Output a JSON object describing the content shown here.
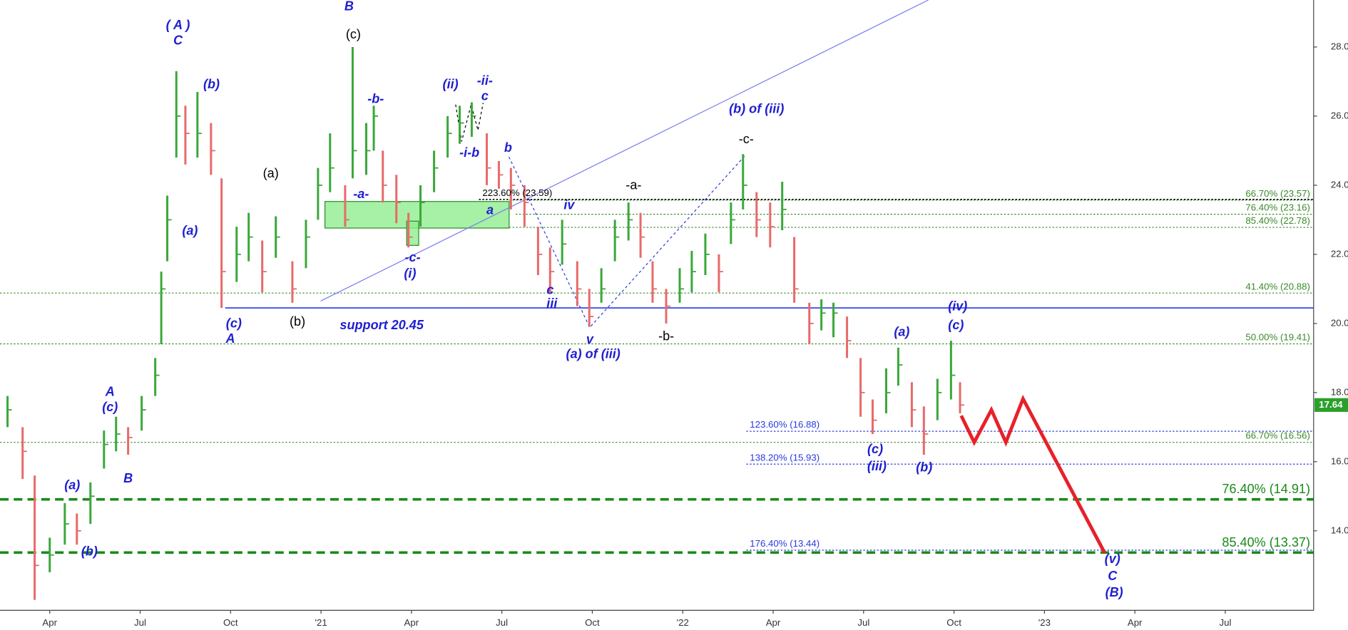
{
  "chart_data": {
    "type": "ohlc",
    "xlim": [
      1.35,
      44.93
    ],
    "ylim": [
      11.7,
      29.36
    ],
    "xticks": [
      {
        "value": 3,
        "label": "Apr"
      },
      {
        "value": 6,
        "label": "Jul"
      },
      {
        "value": 9,
        "label": "Oct"
      },
      {
        "value": 12,
        "label": "'21"
      },
      {
        "value": 15,
        "label": "Apr"
      },
      {
        "value": 18,
        "label": "Jul"
      },
      {
        "value": 21,
        "label": "Oct"
      },
      {
        "value": 24,
        "label": "'22"
      },
      {
        "value": 27,
        "label": "Apr"
      },
      {
        "value": 30,
        "label": "Jul"
      },
      {
        "value": 33,
        "label": "Oct"
      },
      {
        "value": 36,
        "label": "'23"
      },
      {
        "value": 39,
        "label": "Apr"
      },
      {
        "value": 42,
        "label": "Jul"
      }
    ],
    "yticks": [
      {
        "value": 14,
        "label": "14.00"
      },
      {
        "value": 16,
        "label": "16.00"
      },
      {
        "value": 18,
        "label": "18.00"
      },
      {
        "value": 20,
        "label": "20.00"
      },
      {
        "value": 22,
        "label": "22.00"
      },
      {
        "value": 24,
        "label": "24.00"
      },
      {
        "value": 26,
        "label": "26.00"
      },
      {
        "value": 28,
        "label": "28.00"
      }
    ],
    "up_color": "#3aa83a",
    "down_color": "#e86a6a",
    "bars": {
      "x": [
        1.6,
        2.1,
        2.5,
        3.0,
        3.5,
        3.9,
        4.35,
        4.8,
        5.2,
        5.6,
        6.05,
        6.5,
        6.7,
        6.9,
        7.2,
        7.5,
        7.9,
        8.35,
        8.7,
        9.2,
        9.6,
        10.05,
        10.5,
        11.05,
        11.5,
        11.9,
        12.3,
        12.8,
        13.05,
        13.5,
        13.75,
        14.05,
        14.5,
        14.9,
        15.3,
        15.75,
        16.2,
        16.6,
        17.0,
        17.5,
        17.9,
        18.3,
        18.75,
        19.2,
        19.6,
        20.0,
        20.5,
        20.9,
        21.3,
        21.75,
        22.2,
        22.6,
        23.0,
        23.45,
        23.9,
        24.3,
        24.75,
        25.2,
        25.6,
        26.0,
        26.45,
        26.9,
        27.3,
        27.7,
        28.2,
        28.6,
        29.0,
        29.45,
        29.9,
        30.3,
        30.75,
        31.15,
        31.6,
        32.0,
        32.45,
        32.9,
        33.2
      ],
      "close": [
        17.5,
        16.3,
        13.0,
        13.3,
        14.2,
        14.0,
        15.0,
        16.5,
        16.8,
        16.7,
        17.5,
        18.5,
        21.0,
        23.0,
        26.0,
        25.5,
        25.5,
        25.0,
        21.5,
        22.0,
        22.5,
        21.5,
        22.5,
        21.0,
        22.5,
        24.0,
        24.5,
        23.0,
        25.0,
        25.0,
        26.0,
        24.0,
        23.5,
        22.5,
        23.5,
        24.5,
        25.5,
        25.8,
        26.0,
        24.5,
        24.3,
        24.0,
        23.5,
        22.0,
        21.5,
        22.3,
        21.0,
        20.2,
        21.0,
        22.5,
        23.0,
        22.5,
        21.0,
        20.5,
        21.0,
        21.5,
        22.0,
        21.5,
        23.0,
        24.0,
        23.0,
        22.8,
        23.3,
        21.0,
        20.0,
        20.3,
        20.3,
        19.5,
        18.0,
        17.2,
        18.0,
        18.8,
        17.5,
        16.8,
        18.0,
        18.5,
        17.64
      ],
      "high": [
        17.9,
        17.0,
        15.6,
        13.8,
        14.8,
        14.5,
        15.4,
        16.9,
        17.3,
        17.0,
        17.9,
        19.0,
        21.5,
        23.7,
        27.3,
        26.3,
        26.7,
        25.8,
        24.2,
        22.8,
        23.2,
        22.4,
        23.1,
        21.8,
        23.0,
        24.5,
        25.5,
        24.0,
        28.0,
        25.8,
        26.3,
        25.0,
        24.3,
        23.2,
        24.0,
        25.0,
        26.0,
        26.3,
        26.4,
        25.5,
        24.7,
        24.5,
        24.0,
        22.8,
        22.2,
        23.0,
        21.8,
        21.0,
        21.6,
        23.0,
        23.5,
        23.2,
        21.8,
        21.0,
        21.6,
        22.1,
        22.6,
        22.0,
        23.5,
        24.9,
        23.8,
        23.5,
        24.1,
        22.5,
        20.6,
        20.7,
        20.6,
        20.2,
        19.0,
        17.8,
        18.7,
        19.3,
        18.3,
        17.6,
        18.4,
        19.5,
        18.3
      ],
      "low": [
        17.0,
        15.5,
        12.0,
        12.8,
        13.6,
        13.6,
        14.2,
        15.8,
        16.3,
        16.2,
        16.9,
        17.9,
        19.4,
        21.8,
        24.8,
        24.6,
        24.8,
        24.3,
        20.45,
        21.2,
        21.8,
        20.9,
        21.9,
        20.6,
        21.6,
        23.0,
        23.8,
        22.8,
        24.2,
        24.3,
        25.0,
        23.5,
        22.9,
        22.2,
        22.8,
        23.8,
        24.8,
        25.2,
        25.4,
        24.0,
        23.9,
        23.3,
        22.8,
        21.4,
        20.9,
        21.7,
        20.5,
        19.9,
        20.6,
        21.8,
        22.4,
        21.9,
        20.6,
        20.0,
        20.6,
        20.9,
        21.4,
        20.9,
        22.3,
        23.3,
        22.5,
        22.2,
        22.7,
        20.6,
        19.4,
        19.8,
        19.6,
        19.0,
        17.3,
        16.8,
        17.4,
        18.2,
        17.0,
        16.2,
        17.2,
        17.8,
        17.4
      ]
    },
    "projection": {
      "color": "#e8202a",
      "x": [
        33.24,
        33.67,
        34.24,
        34.72,
        35.29,
        38.0
      ],
      "values": [
        17.33,
        16.56,
        17.5,
        16.56,
        17.82,
        13.36
      ]
    },
    "trendline": {
      "color": "#7b7bf0",
      "x": [
        11.99,
        32.15
      ],
      "values": [
        20.65,
        29.36
      ]
    },
    "support": {
      "color": "#2a3adf",
      "value": 20.45,
      "start": 8.82
    },
    "zones": [
      {
        "color": "#90ee90",
        "x": [
          12.13,
          18.24
        ],
        "y": [
          22.76,
          23.53
        ]
      },
      {
        "color": "#90ee90",
        "x": [
          14.84,
          15.24
        ],
        "y": [
          22.26,
          22.96
        ]
      }
    ],
    "levels": [
      {
        "value": 23.57,
        "label": "66.70% (23.57)",
        "color": "#3a8a2a",
        "style": "dotted",
        "start": 18.24,
        "label_side": "right"
      },
      {
        "value": 23.59,
        "label": "223.60% (23.59)",
        "color": "#000000",
        "style": "dotted",
        "start": 17.24,
        "label_side": "left"
      },
      {
        "value": 23.16,
        "label": "76.40% (23.16)",
        "color": "#3a8a2a",
        "style": "dotted",
        "start": 18.46,
        "label_side": "right"
      },
      {
        "value": 22.78,
        "label": "85.40% (22.78)",
        "color": "#3a8a2a",
        "style": "dotted",
        "start": 18.24,
        "label_side": "right"
      },
      {
        "value": 20.88,
        "label": "41.40% (20.88)",
        "color": "#3a8a2a",
        "style": "dotted",
        "start": 1.35,
        "label_side": "right"
      },
      {
        "value": 19.41,
        "label": "50.00% (19.41)",
        "color": "#3a8a2a",
        "style": "dotted",
        "start": 1.35,
        "label_side": "right"
      },
      {
        "value": 16.56,
        "label": "66.70% (16.56)",
        "color": "#3a8a2a",
        "style": "dotted",
        "start": 1.35,
        "label_side": "right"
      },
      {
        "value": 16.88,
        "label": "123.60% (16.88)",
        "color": "#2a3adf",
        "style": "dotted",
        "start": 26.11,
        "label_side": "left"
      },
      {
        "value": 15.93,
        "label": "138.20% (15.93)",
        "color": "#2a3adf",
        "style": "dotted",
        "start": 26.11,
        "label_side": "left"
      },
      {
        "value": 13.44,
        "label": "176.40% (13.44)",
        "color": "#2a3adf",
        "style": "dotted",
        "start": 26.11,
        "label_side": "left"
      },
      {
        "value": 14.91,
        "label": "76.40% (14.91)",
        "color": "#1a8a1a",
        "style": "dashed",
        "start": 1.35,
        "label_side": "right"
      },
      {
        "value": 13.37,
        "label": "85.40% (13.37)",
        "color": "#1a8a1a",
        "style": "dashed",
        "start": 1.35,
        "label_side": "right"
      }
    ],
    "last_price": 17.64,
    "last_price_color": "#2aa02a",
    "annotations": [
      {
        "text": "( A )",
        "color": "#1f1fd0"
      },
      {
        "text": "C",
        "color": "#1f1fd0"
      },
      {
        "text": "B",
        "color": "#1f1fd0"
      },
      {
        "text": "(c)",
        "color": "#000000"
      },
      {
        "text": "(b)",
        "color": "#1f1fd0"
      },
      {
        "text": "-b-",
        "color": "#1f1fd0"
      },
      {
        "text": "(ii)",
        "color": "#1f1fd0"
      },
      {
        "text": "-ii-",
        "color": "#1f1fd0"
      },
      {
        "text": "c",
        "color": "#1f1fd0"
      },
      {
        "text": "(b) of (iii)",
        "color": "#1f1fd0"
      },
      {
        "text": "-c-",
        "color": "#000000"
      },
      {
        "text": "-i-b",
        "color": "#1f1fd0"
      },
      {
        "text": "b",
        "color": "#1f1fd0"
      },
      {
        "text": "(a)",
        "color": "#000000"
      },
      {
        "text": "-a-",
        "color": "#1f1fd0"
      },
      {
        "text": "-a-",
        "color": "#000000"
      },
      {
        "text": "a",
        "color": "#1f1fd0"
      },
      {
        "text": "iv",
        "color": "#1f1fd0"
      },
      {
        "text": "(a)",
        "color": "#1f1fd0"
      },
      {
        "text": "-c-",
        "color": "#1f1fd0"
      },
      {
        "text": "(i)",
        "color": "#1f1fd0"
      },
      {
        "text": "c",
        "color": "#1f1fd0"
      },
      {
        "text": "iii",
        "color": "#1f1fd0"
      },
      {
        "text": "(c)",
        "color": "#1f1fd0"
      },
      {
        "text": "A",
        "color": "#1f1fd0"
      },
      {
        "text": "(b)",
        "color": "#000000"
      },
      {
        "text": "support 20.45",
        "color": "#1f1fd0"
      },
      {
        "text": "v",
        "color": "#1f1fd0"
      },
      {
        "text": "(a) of (iii)",
        "color": "#1f1fd0"
      },
      {
        "text": "-b-",
        "color": "#000000"
      },
      {
        "text": "(iv)",
        "color": "#1f1fd0"
      },
      {
        "text": "(c)",
        "color": "#1f1fd0"
      },
      {
        "text": "(a)",
        "color": "#1f1fd0"
      },
      {
        "text": "A",
        "color": "#1f1fd0"
      },
      {
        "text": "(c)",
        "color": "#1f1fd0"
      },
      {
        "text": "B",
        "color": "#1f1fd0"
      },
      {
        "text": "(a)",
        "color": "#1f1fd0"
      },
      {
        "text": "(b)",
        "color": "#1f1fd0"
      },
      {
        "text": "(c)",
        "color": "#1f1fd0"
      },
      {
        "text": "(iii)",
        "color": "#1f1fd0"
      },
      {
        "text": "(b)",
        "color": "#1f1fd0"
      },
      {
        "text": "(v)",
        "color": "#1f1fd0"
      },
      {
        "text": "C",
        "color": "#1f1fd0"
      },
      {
        "text": "(B)",
        "color": "#1f1fd0"
      }
    ]
  }
}
